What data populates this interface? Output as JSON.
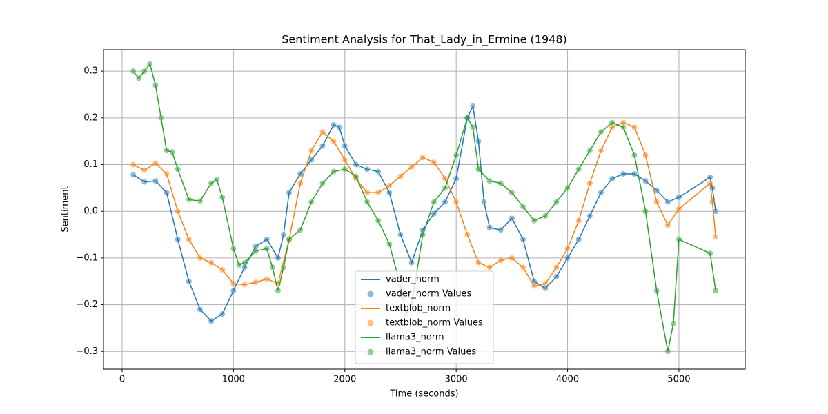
{
  "chart_data": {
    "type": "line",
    "title": "Sentiment Analysis for That_Lady_in_Ermine (1948)",
    "x_label": "Time (seconds)",
    "y_label": "Sentiment",
    "xlim": [
      -167,
      5595
    ],
    "ylim": [
      -0.338,
      0.346
    ],
    "xticks": [
      0,
      1000,
      2000,
      3000,
      4000,
      5000
    ],
    "yticks": [
      {
        "value": -0.3,
        "label": "−0.3"
      },
      {
        "value": -0.2,
        "label": "−0.2"
      },
      {
        "value": -0.1,
        "label": "−0.1"
      },
      {
        "value": 0,
        "label": "0.0"
      },
      0.1,
      0.2,
      0.3
    ],
    "grid": true,
    "legend": "lower center",
    "series": [
      {
        "name": "vader_norm",
        "scatter_name": "vader_norm Values",
        "color": "#1f77b4",
        "x": [
          100,
          200,
          300,
          400,
          500,
          600,
          700,
          800,
          900,
          1000,
          1100,
          1200,
          1300,
          1400,
          1450,
          1500,
          1600,
          1700,
          1800,
          1900,
          1950,
          2000,
          2100,
          2200,
          2300,
          2400,
          2500,
          2600,
          2700,
          2800,
          2900,
          3000,
          3100,
          3150,
          3200,
          3250,
          3300,
          3400,
          3500,
          3600,
          3700,
          3800,
          3900,
          4000,
          4100,
          4200,
          4300,
          4400,
          4500,
          4600,
          4700,
          4800,
          4900,
          5000,
          5280,
          5300,
          5330
        ],
        "values": [
          0.078,
          0.063,
          0.065,
          0.04,
          -0.06,
          -0.15,
          -0.21,
          -0.235,
          -0.22,
          -0.17,
          -0.12,
          -0.075,
          -0.06,
          -0.1,
          -0.05,
          0.04,
          0.08,
          0.11,
          0.14,
          0.185,
          0.18,
          0.14,
          0.1,
          0.09,
          0.085,
          0.04,
          -0.05,
          -0.11,
          -0.04,
          -0.005,
          0.02,
          0.07,
          0.2,
          0.225,
          0.15,
          0.02,
          -0.035,
          -0.04,
          -0.015,
          -0.06,
          -0.15,
          -0.165,
          -0.14,
          -0.1,
          -0.06,
          -0.01,
          0.04,
          0.07,
          0.08,
          0.08,
          0.065,
          0.045,
          0.02,
          0.03,
          0.073,
          0.05,
          0.0
        ]
      },
      {
        "name": "textblob_norm",
        "scatter_name": "textblob_norm Values",
        "color": "#ff7f0e",
        "x": [
          100,
          200,
          300,
          400,
          500,
          600,
          700,
          800,
          900,
          1000,
          1100,
          1200,
          1300,
          1400,
          1500,
          1600,
          1700,
          1800,
          1900,
          2000,
          2100,
          2200,
          2300,
          2400,
          2500,
          2600,
          2700,
          2800,
          2900,
          3000,
          3100,
          3200,
          3300,
          3400,
          3500,
          3600,
          3700,
          3800,
          3900,
          4000,
          4100,
          4200,
          4300,
          4400,
          4500,
          4600,
          4700,
          4800,
          4900,
          5000,
          5280,
          5300,
          5330
        ],
        "values": [
          0.1,
          0.088,
          0.103,
          0.08,
          0.0,
          -0.06,
          -0.1,
          -0.11,
          -0.125,
          -0.155,
          -0.157,
          -0.152,
          -0.145,
          -0.155,
          -0.06,
          0.06,
          0.13,
          0.17,
          0.15,
          0.11,
          0.07,
          0.04,
          0.04,
          0.055,
          0.075,
          0.095,
          0.115,
          0.105,
          0.07,
          0.02,
          -0.05,
          -0.11,
          -0.12,
          -0.105,
          -0.1,
          -0.12,
          -0.16,
          -0.155,
          -0.12,
          -0.08,
          -0.02,
          0.06,
          0.13,
          0.18,
          0.19,
          0.18,
          0.12,
          0.02,
          -0.03,
          0.005,
          0.06,
          0.02,
          -0.055
        ]
      },
      {
        "name": "llama3_norm",
        "scatter_name": "llama3_norm Values",
        "color": "#2ca02c",
        "x": [
          100,
          150,
          200,
          250,
          300,
          350,
          400,
          450,
          500,
          600,
          700,
          800,
          850,
          900,
          1000,
          1050,
          1100,
          1200,
          1300,
          1350,
          1400,
          1450,
          1500,
          1600,
          1700,
          1800,
          1900,
          2000,
          2100,
          2200,
          2300,
          2400,
          2500,
          2550,
          2600,
          2700,
          2800,
          2900,
          3000,
          3100,
          3150,
          3200,
          3300,
          3400,
          3500,
          3600,
          3700,
          3800,
          3900,
          4000,
          4100,
          4200,
          4300,
          4400,
          4500,
          4600,
          4700,
          4800,
          4900,
          4950,
          5000,
          5280,
          5330
        ],
        "values": [
          0.3,
          0.285,
          0.3,
          0.315,
          0.27,
          0.2,
          0.13,
          0.127,
          0.09,
          0.025,
          0.022,
          0.06,
          0.068,
          0.03,
          -0.08,
          -0.115,
          -0.11,
          -0.085,
          -0.08,
          -0.12,
          -0.17,
          -0.12,
          -0.06,
          -0.04,
          0.02,
          0.06,
          0.085,
          0.09,
          0.075,
          0.02,
          -0.02,
          -0.07,
          -0.16,
          -0.22,
          -0.2,
          -0.05,
          0.02,
          0.05,
          0.12,
          0.2,
          0.18,
          0.09,
          0.065,
          0.06,
          0.04,
          0.01,
          -0.02,
          -0.01,
          0.02,
          0.05,
          0.09,
          0.13,
          0.17,
          0.19,
          0.18,
          0.12,
          0.0,
          -0.17,
          -0.3,
          -0.24,
          -0.06,
          -0.09,
          -0.17
        ]
      }
    ]
  }
}
